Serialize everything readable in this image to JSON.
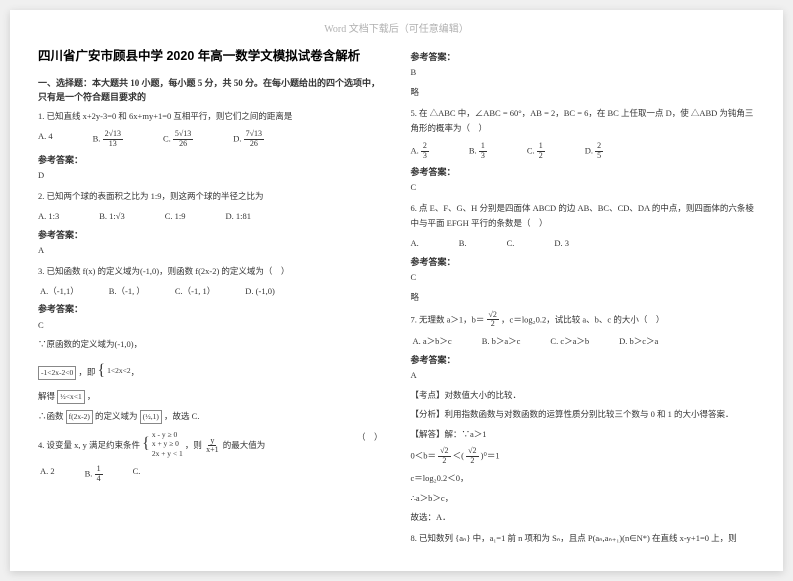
{
  "watermark": "Word 文档下载后（可任意编辑）",
  "title": "四川省广安市顾县中学 2020 年高一数学文模拟试卷含解析",
  "section1": "一、选择题：本大题共 10 小题，每小题 5 分，共 50 分。在每小题给出的四个选项中，只有是一个符合题目要求的",
  "q1": {
    "text": "1. 已知直线 x+2y-3=0 和 6x+my+1=0 互相平行，则它们之间的距离是",
    "optA": "A. 4",
    "optB_num": "2√13",
    "optB_den": "13",
    "optB": "B.",
    "optC_num": "5√13",
    "optC_den": "26",
    "optC": "C.",
    "optD_num": "7√13",
    "optD_den": "26",
    "optD": "D.",
    "ans": "D"
  },
  "q2": {
    "text": "2. 已知两个球的表面积之比为 1:9，则这两个球的半径之比为",
    "optA": "A. 1:3",
    "optB": "B. 1:√3",
    "optC": "C. 1:9",
    "optD": "D. 1:81",
    "ans": "A"
  },
  "q3": {
    "text": "3. 已知函数 f(x) 的定义域为(-1,0)，则函数 f(2x-2) 的定义域为（　）",
    "optA": "A.（-1,1）",
    "optB": "B.（-1, ）",
    "optC": "C.（-1, 1）",
    "optD": "D. (-1,0)",
    "ans": "C",
    "detail1": "∵原函数的定义域为(-1,0)，",
    "detail2_l": "-1<2x-2<0",
    "detail2_r_top": "1<2x<2",
    "detail2_r_bot": "",
    "detail2_mid": "，即",
    "detail3_pre": "解得",
    "detail3_box": "½<x<1",
    "detail3_post": "，",
    "detail4_pre": "∴函数",
    "detail4_box": "f(2x-2)",
    "detail4_mid": " 的定义域为 ",
    "detail4_int": "(½,1)",
    "detail4_post": "，故选 C."
  },
  "q4": {
    "text_pre": "4. 设变量 x, y 满足约束条件",
    "c1": "x - y ≥ 0",
    "c2": "x + y ≥ 0",
    "c3": "2x + y < 1",
    "text_mid": "，则 ",
    "obj_num": "y",
    "obj_den": "x+1",
    "text_post": " 的最大值为",
    "optA": "A. 2",
    "optB_pre": "B. ",
    "optB_num": "1",
    "optB_den": "4",
    "optC": "C.",
    "lparen": "（　）"
  },
  "ans_label": "参考答案：",
  "rcol": {
    "ans4_ans": "B",
    "ans4_detail": "略",
    "q5_pre": "5. 在 △ABC 中，∠ABC = 60°，AB = 2，BC = 6，在 BC 上任取一点 D，使 △ABD 为钝角三角形的概率为（　）",
    "q5A_num": "2",
    "q5A_den": "3",
    "q5A": "A.",
    "q5B_num": "1",
    "q5B_den": "3",
    "q5B": "B.",
    "q5C_num": "1",
    "q5C_den": "2",
    "q5C": "C.",
    "q5D_num": "2",
    "q5D_den": "5",
    "q5D": "D.",
    "ans5": "C",
    "q6_text": "6. 点 E、F、G、H 分别是四面体 ABCD 的边 AB、BC、CD、DA 的中点，则四面体的六条棱中与平面 EFGH 平行的条数是（　）",
    "q6A": "A.",
    "q6B": "B.",
    "q6C": "C.",
    "q6D": "D. 3",
    "ans6": "C",
    "ans6_detail": "略",
    "q7_pre": "7. 无理数 a＞1，b＝",
    "q7_frac_num": "√2",
    "q7_frac_den": "2",
    "q7_mid": "，c＝log₂0.2，试比较 a、b、c 的大小（　）",
    "q7A": "A. a＞b＞c",
    "q7B": "B. b＞a＞c",
    "q7C": "C. c＞a＞b",
    "q7D": "D. b＞c＞a",
    "ans7": "A",
    "a7_1": "【考点】对数值大小的比较．",
    "a7_2": "【分析】利用指数函数与对数函数的运算性质分别比较三个数与 0 和 1 的大小得答案．",
    "a7_3_pre": "【解答】解：∵a＞1",
    "a7_4": "0＜b＝",
    "a7_4_num": "√2",
    "a7_4_den": "2",
    "a7_4_mid": "＜(",
    "a7_4_num2": "√2",
    "a7_4_den2": "2",
    "a7_4_post": ")⁰＝1",
    "a7_5": "c＝log₂0.2＜0，",
    "a7_6": "∴a＞b＞c，",
    "a7_7": "故选：A．",
    "q8_pre": "8. 已知数列 {aₙ} 中，a₁=1 前 n 项和为 Sₙ，且点 P(aₙ,aₙ₊₁)(n∈N*) 在直线 x-y+1=0 上，则"
  }
}
